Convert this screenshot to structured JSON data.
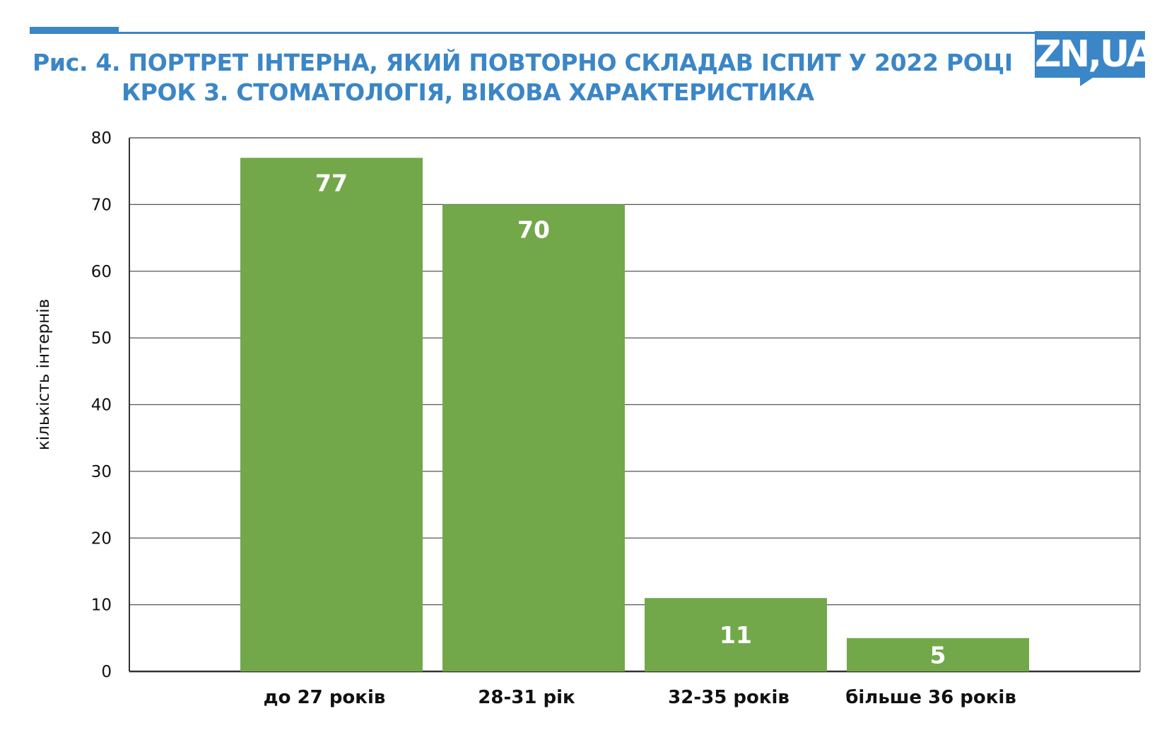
{
  "title": {
    "line1": "Рис. 4. ПОРТРЕТ ІНТЕРНА, ЯКИЙ ПОВТОРНО СКЛАДАВ ІСПИТ У 2022 РОЦІ",
    "line2": "КРОК 3. СТОМАТОЛОГІЯ, ВІКОВА ХАРАКТЕРИСТИКА"
  },
  "logo": {
    "text": "ZN,UA"
  },
  "colors": {
    "accent": "#3b86c6",
    "bar": "#72a84a",
    "bar_label": "#ffffff",
    "grid": "#555555"
  },
  "chart_data": {
    "type": "bar",
    "categories": [
      "до 27 років",
      "28-31 рік",
      "32-35 років",
      "більше 36 років"
    ],
    "values": [
      77,
      70,
      11,
      5
    ],
    "data_labels": [
      "77",
      "70",
      "11",
      "5"
    ],
    "ylabel": "кількість інтернів",
    "xlabel": "",
    "ylim": [
      0,
      80
    ],
    "yticks": [
      0,
      10,
      20,
      30,
      40,
      50,
      60,
      70,
      80
    ],
    "grid": true,
    "legend": "none"
  }
}
